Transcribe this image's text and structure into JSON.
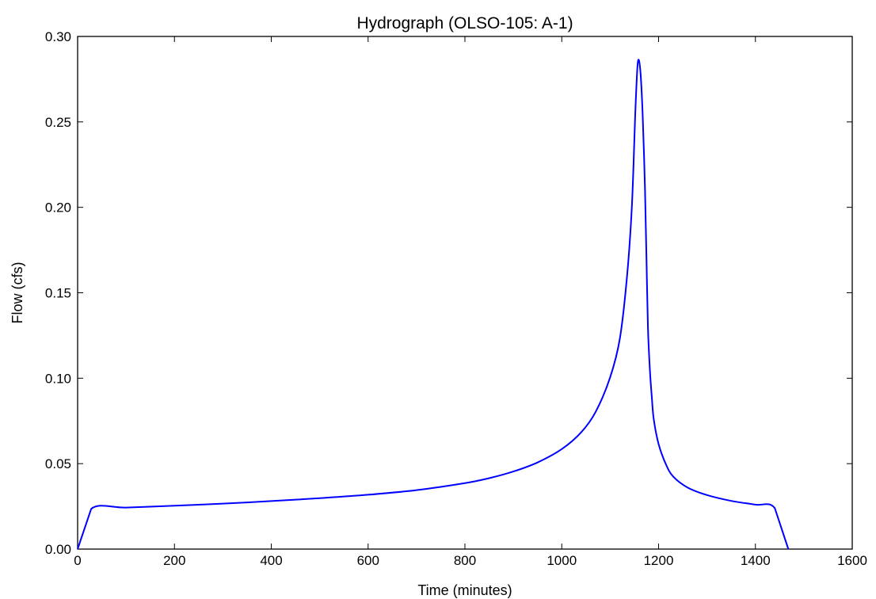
{
  "chart_data": {
    "type": "line",
    "title": "Hydrograph (OLSO-105: A-1)",
    "xlabel": "Time (minutes)",
    "ylabel": "Flow (cfs)",
    "xlim": [
      0,
      1600
    ],
    "ylim": [
      0,
      0.3
    ],
    "grid": false,
    "legend": "none",
    "xticks": [
      "0",
      "200",
      "400",
      "600",
      "800",
      "1000",
      "1200",
      "1400",
      "1600"
    ],
    "yticks": [
      "0.00",
      "0.05",
      "0.10",
      "0.15",
      "0.20",
      "0.25",
      "0.30"
    ],
    "series": [
      {
        "color": "#0000ff",
        "x": [
          0,
          28,
          100,
          200,
          300,
          400,
          500,
          600,
          700,
          800,
          850,
          900,
          950,
          1000,
          1040,
          1070,
          1100,
          1120,
          1135,
          1145,
          1152,
          1157,
          1162,
          1167,
          1172,
          1175,
          1178,
          1182,
          1186,
          1190,
          1200,
          1215,
          1230,
          1260,
          1300,
          1350,
          1400,
          1440,
          1468
        ],
        "y": [
          0.0,
          0.0235,
          0.0243,
          0.0254,
          0.0266,
          0.0281,
          0.0298,
          0.0318,
          0.0345,
          0.0386,
          0.0415,
          0.0454,
          0.0507,
          0.0585,
          0.0683,
          0.0803,
          0.1006,
          0.1232,
          0.1602,
          0.2015,
          0.256,
          0.2845,
          0.281,
          0.255,
          0.21,
          0.17,
          0.13,
          0.105,
          0.089,
          0.076,
          0.0615,
          0.0497,
          0.0425,
          0.036,
          0.0316,
          0.0282,
          0.026,
          0.024,
          0.0
        ]
      }
    ]
  }
}
